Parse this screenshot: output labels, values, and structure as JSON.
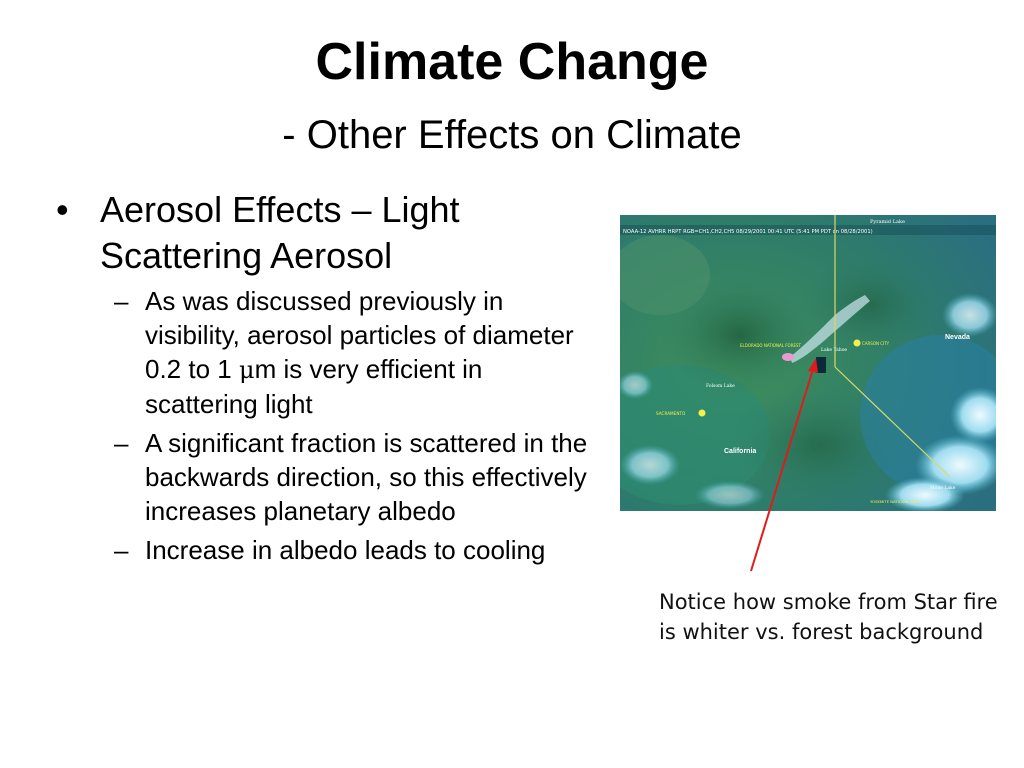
{
  "slide": {
    "title": "Climate Change",
    "subtitle": "- Other Effects on Climate",
    "bullet": {
      "marker": "•",
      "text_line1": "Aerosol Effects – Light",
      "text_line2": "Scattering Aerosol",
      "subitems": [
        {
          "marker": "–",
          "text_a": "As was discussed previously in visibility, aerosol particles of diameter 0.2 to 1 ",
          "mu": "μ",
          "text_b": "m is very efficient in scattering light"
        },
        {
          "marker": "–",
          "text": "A significant fraction is scattered in the backwards direction, so this effectively increases planetary albedo"
        },
        {
          "marker": "–",
          "text": "Increase in albedo leads to cooling"
        }
      ]
    },
    "image": {
      "header_text": "NOAA-12 AVHRR HRPT RGB=CH1,CH2,CH5 08/29/2001 00:41 UTC (5:41 PM PDT on 08/28/2001)",
      "labels": {
        "pyramid_lake": "Pyramid Lake",
        "nevada": "Nevada",
        "eldorado": "ELDORADO NATIONAL FOREST",
        "lake_tahoe": "Lake Tahoe",
        "carson_city": "CARSON CITY",
        "folsom_lake": "Folsom Lake",
        "sacramento": "SACRAMENTO",
        "california": "California",
        "mono_lake": "Mono Lake",
        "yosemite": "YOSEMITE NATIONAL PARK"
      }
    },
    "caption": "Notice how smoke from Star fire is whiter vs. forest background",
    "colors": {
      "arrow": "#e11b1b",
      "forest": "#3a8a6e",
      "cloud": "#dff4fb",
      "state_line": "#d8d96a"
    }
  }
}
